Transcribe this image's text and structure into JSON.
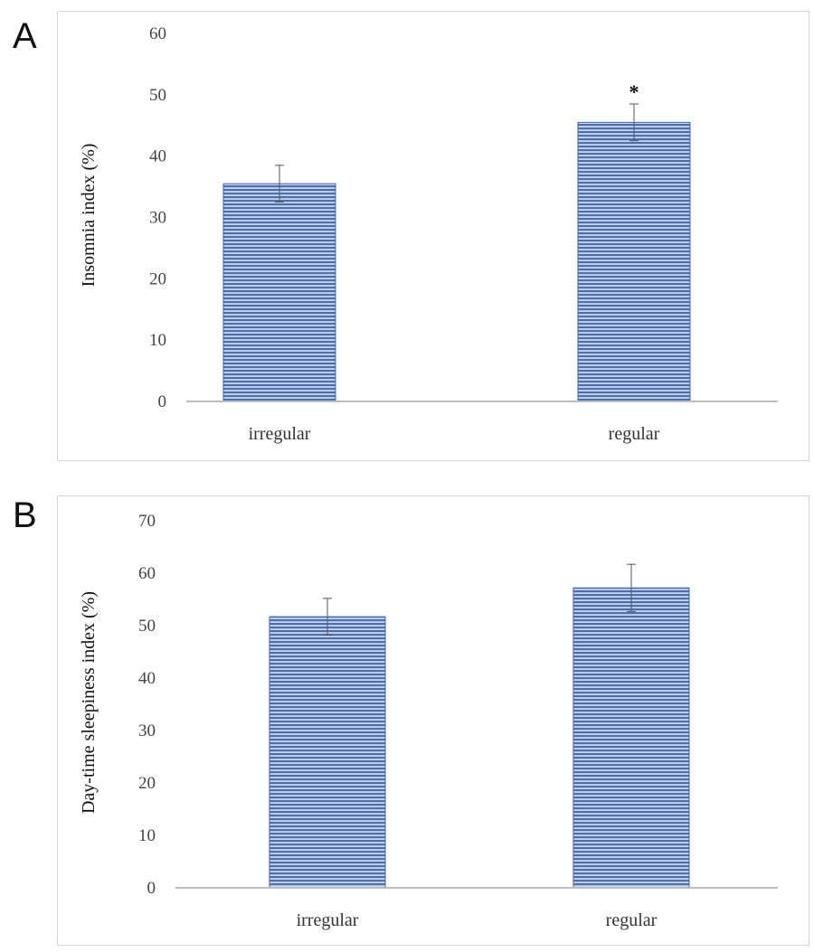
{
  "panels": [
    {
      "letter": "A"
    },
    {
      "letter": "B"
    }
  ],
  "chart_data": [
    {
      "type": "bar",
      "categories": [
        "irregular",
        "regular"
      ],
      "values": [
        35.5,
        45.5
      ],
      "errors": [
        3.0,
        3.0
      ],
      "significance": [
        "",
        "*"
      ],
      "ylabel": "Insomnia index (%)",
      "xlabel": "",
      "ylim": [
        0,
        60
      ],
      "yticks": [
        0,
        10,
        20,
        30,
        40,
        50,
        60
      ],
      "grid": false,
      "legend": "none",
      "bar_color": "#4a6fb5"
    },
    {
      "type": "bar",
      "categories": [
        "irregular",
        "regular"
      ],
      "values": [
        51.7,
        57.2
      ],
      "errors": [
        3.5,
        4.5
      ],
      "significance": [
        "",
        ""
      ],
      "ylabel": "Day-time sleepiness index (%)",
      "xlabel": "",
      "ylim": [
        0,
        70
      ],
      "yticks": [
        0,
        10,
        20,
        30,
        40,
        50,
        60,
        70
      ],
      "grid": false,
      "legend": "none",
      "bar_color": "#4a6fb5"
    }
  ]
}
